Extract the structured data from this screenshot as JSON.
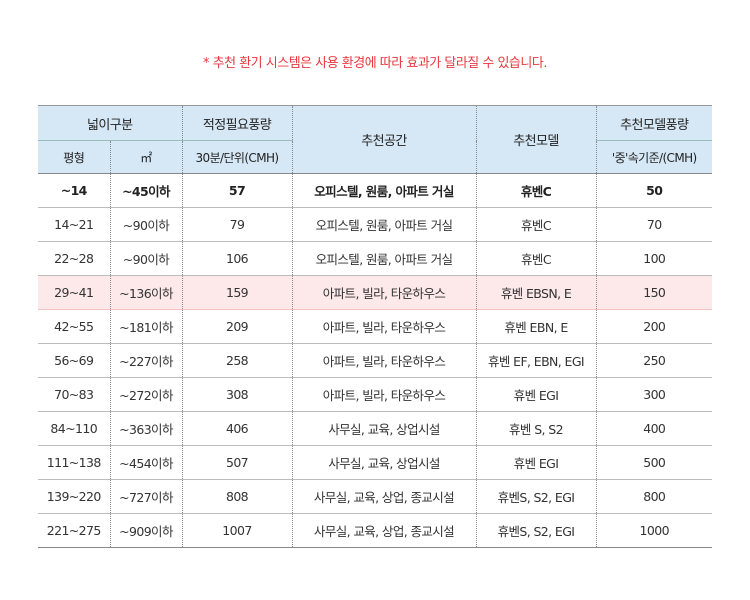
{
  "notice": "* 추천 환기 시스템은 사용 환경에 따라 효과가 달라질 수 있습니다.",
  "headers": {
    "area": "넓이구분",
    "required": "적정필요풍량",
    "space": "추천공간",
    "model": "추천모델",
    "model_flow": "추천모델풍량",
    "pyeong": "평형",
    "sqm": "㎡",
    "required_unit": "30분/단위(CMH)",
    "model_flow_unit": "'중'속기준/(CMH)"
  },
  "rows": [
    [
      "~14",
      "~45이하",
      "57",
      "오피스텔, 원룸, 아파트 거실",
      "휴벤C",
      "50"
    ],
    [
      "14~21",
      "~90이하",
      "79",
      "오피스텔, 원룸, 아파트 거실",
      "휴벤C",
      "70"
    ],
    [
      "22~28",
      "~90이하",
      "106",
      "오피스텔, 원룸, 아파트 거실",
      "휴벤C",
      "100"
    ],
    [
      "29~41",
      "~136이하",
      "159",
      "아파트, 빌라, 타운하우스",
      "휴벤 EBSN, E",
      "150"
    ],
    [
      "42~55",
      "~181이하",
      "209",
      "아파트, 빌라, 타운하우스",
      "휴벤 EBN, E",
      "200"
    ],
    [
      "56~69",
      "~227이하",
      "258",
      "아파트, 빌라, 타운하우스",
      "휴벤 EF, EBN, EGI",
      "250"
    ],
    [
      "70~83",
      "~272이하",
      "308",
      "아파트, 빌라, 타운하우스",
      "휴벤 EGI",
      "300"
    ],
    [
      "84~110",
      "~363이하",
      "406",
      "사무실, 교육, 상업시설",
      "휴벤 S, S2",
      "400"
    ],
    [
      "111~138",
      "~454이하",
      "507",
      "사무실, 교육, 상업시설",
      "휴벤 EGI",
      "500"
    ],
    [
      "139~220",
      "~727이하",
      "808",
      "사무실, 교육, 상업, 종교시설",
      "휴벤S, S2, EGI",
      "800"
    ],
    [
      "221~275",
      "~909이하",
      "1007",
      "사무실, 교육, 상업, 종교시설",
      "휴벤S, S2, EGI",
      "1000"
    ]
  ],
  "highlighted_row": 3
}
